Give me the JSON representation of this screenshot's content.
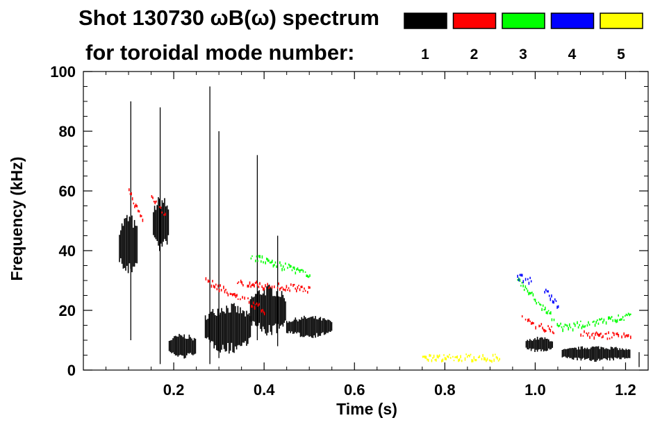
{
  "chart_data": {
    "type": "spectrogram",
    "title_line1": "Shot 130730 ωB(ω) spectrum",
    "title_line2": "for toroidal mode number:",
    "xlabel": "Time (s)",
    "ylabel": "Frequency (kHz)",
    "xlim": [
      0.0,
      1.25
    ],
    "ylim": [
      0,
      100
    ],
    "x_ticks": [
      0.2,
      0.4,
      0.6,
      0.8,
      1.0,
      1.2
    ],
    "x_tick_labels": [
      "0.2",
      "0.4",
      "0.6",
      "0.8",
      "1.0",
      "1.2"
    ],
    "y_ticks": [
      0,
      20,
      40,
      60,
      80,
      100
    ],
    "y_tick_labels": [
      "0",
      "20",
      "40",
      "60",
      "80",
      "100"
    ],
    "legend": [
      {
        "label": "1",
        "color": "#000000"
      },
      {
        "label": "2",
        "color": "#ff0000"
      },
      {
        "label": "3",
        "color": "#00ff00"
      },
      {
        "label": "4",
        "color": "#0000ff"
      },
      {
        "label": "5",
        "color": "#ffff00"
      }
    ],
    "series": [
      {
        "mode": "1",
        "blobs": [
          {
            "t": [
              0.08,
              0.12
            ],
            "f": [
              32,
              52
            ]
          },
          {
            "t": [
              0.155,
              0.19
            ],
            "f": [
              40,
              58
            ]
          },
          {
            "t": [
              0.19,
              0.25
            ],
            "f": [
              4,
              12
            ]
          },
          {
            "t": [
              0.27,
              0.37
            ],
            "f": [
              6,
              22
            ]
          },
          {
            "t": [
              0.37,
              0.45
            ],
            "f": [
              12,
              28
            ]
          },
          {
            "t": [
              0.45,
              0.55
            ],
            "f": [
              11,
              18
            ]
          },
          {
            "t": [
              0.98,
              1.04
            ],
            "f": [
              6,
              11
            ]
          },
          {
            "t": [
              1.06,
              1.21
            ],
            "f": [
              3,
              8
            ]
          }
        ],
        "spikes": [
          {
            "t": 0.105,
            "f": [
              10,
              90
            ]
          },
          {
            "t": 0.17,
            "f": [
              2,
              88
            ]
          },
          {
            "t": 0.28,
            "f": [
              2,
              95
            ]
          },
          {
            "t": 0.3,
            "f": [
              4,
              80
            ]
          },
          {
            "t": 0.385,
            "f": [
              10,
              72
            ]
          },
          {
            "t": 0.43,
            "f": [
              8,
              45
            ]
          },
          {
            "t": 1.23,
            "f": [
              1,
              6
            ]
          }
        ]
      },
      {
        "mode": "2",
        "tracks": [
          {
            "t": [
              0.1,
              0.13
            ],
            "f": [
              60,
              50
            ]
          },
          {
            "t": [
              0.15,
              0.18
            ],
            "f": [
              58,
              52
            ]
          },
          {
            "t": [
              0.27,
              0.4
            ],
            "f": [
              30,
              20
            ]
          },
          {
            "t": [
              0.34,
              0.5
            ],
            "f": [
              29,
              27
            ]
          },
          {
            "t": [
              0.97,
              1.04
            ],
            "f": [
              17,
              13
            ]
          },
          {
            "t": [
              1.1,
              1.21
            ],
            "f": [
              12,
              11
            ]
          }
        ]
      },
      {
        "mode": "3",
        "tracks": [
          {
            "t": [
              0.37,
              0.5
            ],
            "f": [
              38,
              32
            ]
          },
          {
            "t": [
              0.96,
              1.06
            ],
            "f": [
              30,
              14
            ]
          },
          {
            "t": [
              1.06,
              1.21
            ],
            "f": [
              14,
              18
            ]
          }
        ]
      },
      {
        "mode": "4",
        "tracks": [
          {
            "t": [
              0.96,
              0.99
            ],
            "f": [
              31,
              30
            ]
          },
          {
            "t": [
              1.02,
              1.05
            ],
            "f": [
              27,
              21
            ]
          }
        ]
      },
      {
        "mode": "5",
        "tracks": [
          {
            "t": [
              0.75,
              0.92
            ],
            "f": [
              4,
              4
            ]
          }
        ]
      }
    ]
  }
}
